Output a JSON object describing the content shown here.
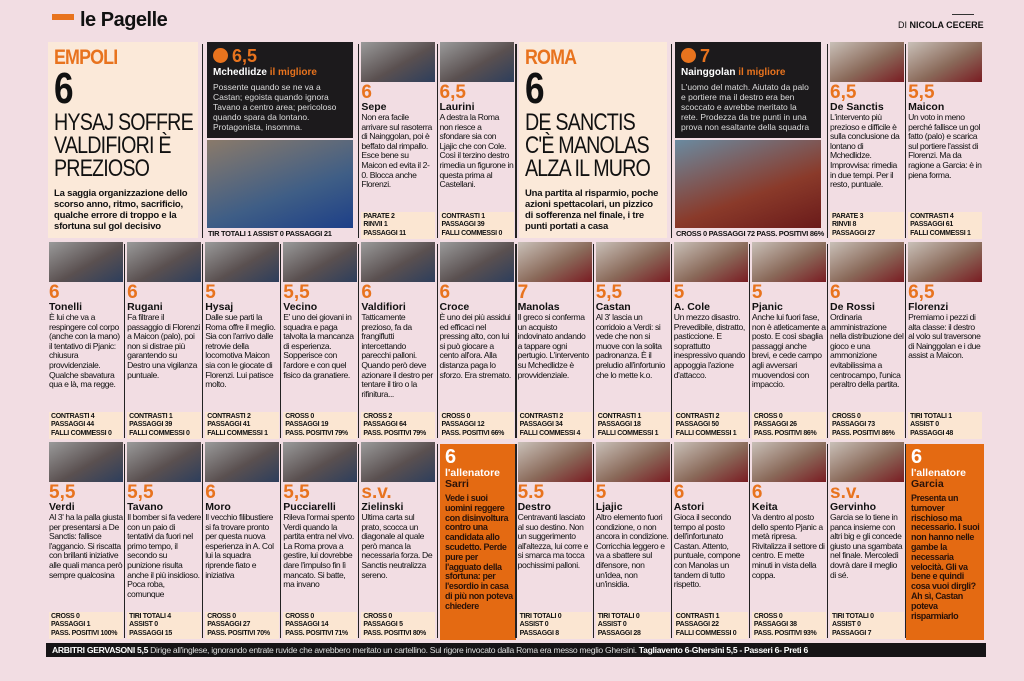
{
  "header": {
    "title": "le Pagelle",
    "byline_prefix": "DI",
    "byline_author": "NICOLA CECERE"
  },
  "colors": {
    "accent": "#e8731e",
    "background": "#f2dde3",
    "summary_bg": "#fbe9d9",
    "best_bg": "#1c1a1c"
  },
  "empoli": {
    "team": "EMPOLI",
    "grade": "6",
    "headline": "HYSAJ SOFFRE VALDIFIORI È PREZIOSO",
    "lead": "La saggia organizzazione dello scorso anno, ritmo, sacrificio, qualche errore di troppo e la sfortuna sul gol decisivo",
    "best": {
      "icon": "ball-icon",
      "grade": "6,5",
      "name": "Mchedlidze",
      "tag": "il migliore",
      "text": "Possente quando se ne va a Castan; egoista quando ignora Tavano a centro area; pericoloso quando spara da lontano. Protagonista, insomma.",
      "stats": "TIR TOTALI 1 ASSIST 0 PASSAGGI 21"
    },
    "coach": {
      "grade": "6",
      "label": "l'allenatore",
      "name": "Sarri",
      "text": "Vede i suoi uomini reggere con disinvoltura contro una candidata allo scudetto. Perde pure per l'agguato della sfortuna: per l'esordio in casa di più non poteva chiedere"
    }
  },
  "roma": {
    "team": "ROMA",
    "grade": "6",
    "headline": "DE SANCTIS C'È MANOLAS ALZA IL MURO",
    "lead": "Una partita al risparmio, poche azioni spettacolari, un pizzico di sofferenza nel finale, i tre punti portati a casa",
    "best": {
      "icon": "ball-icon",
      "grade": "7",
      "name": "Nainggolan",
      "tag": "il migliore",
      "text": "L'uomo del match. Aiutato da palo e portiere ma il destro era ben scoccato e avrebbe meritato la rete. Prodezza da tre punti in una prova non esaltante della squadra",
      "stats": "CROSS 0 PASSAGGI 72 PASS. POSITIVI 86%"
    },
    "coach": {
      "grade": "6",
      "label": "l'allenatore",
      "name": "Garcia",
      "text": "Presenta un turnover rischioso ma necessario. I suoi non hanno nelle gambe la necessaria velocità. Gli va bene e quindi cosa vuoi dirgli? Ah sì, Castan poteva risparmiarlo"
    }
  },
  "players": [
    {
      "team": "empoli",
      "rating": "6",
      "name": "Sepe",
      "text": "Non era facile arrivare sul rasoterra di Nainggolan, poi è beffato dal rimpallo. Esce bene su Maicon ed evita il 2-0. Blocca anche Florenzi.",
      "stats": [
        "PARATE 2",
        "RINVII 1",
        "PASSAGGI 11"
      ]
    },
    {
      "team": "empoli",
      "rating": "6,5",
      "name": "Laurini",
      "text": "A destra la Roma non riesce a sfondare sia con Ljajic che con Cole. Così il terzino destro rimedia un figurone in questa prima al Castellani.",
      "stats": [
        "CONTRASTI 1",
        "PASSAGGI 39",
        "FALLI COMMESSI 0"
      ]
    },
    {
      "team": "roma",
      "rating": "6,5",
      "name": "De Sanctis",
      "text": "L'intervento più prezioso e difficile è sulla conclusione da lontano di Mchedlidze. Improvvisa: rimedia in due tempi. Per il resto, puntuale.",
      "stats": [
        "PARATE 3",
        "RINVII 8",
        "PASSAGGI 27"
      ]
    },
    {
      "team": "roma",
      "rating": "5,5",
      "name": "Maicon",
      "text": "Un voto in meno perché fallisce un gol fatto (palo) e scarica sul portiere l'assist di Florenzi. Ma da ragione a Garcia: è in piena forma.",
      "stats": [
        "CONTRASTI 4",
        "PASSAGGI 61",
        "FALLI COMMESSI 1"
      ]
    },
    {
      "team": "empoli",
      "rating": "6",
      "name": "Tonelli",
      "text": "È lui che va a respingere col corpo (anche con la mano) il tentativo di Pjanic: chiusura provvidenziale. Qualche sbavatura qua e là, ma regge.",
      "stats": [
        "CONTRASTI 4",
        "PASSAGGI 44",
        "FALLI COMMESSI 0"
      ]
    },
    {
      "team": "empoli",
      "rating": "6",
      "name": "Rugani",
      "text": "Fa filtrare il passaggio di Florenzi a Maicon (palo), poi non si distrae più garantendo su Destro una vigilanza puntuale.",
      "stats": [
        "CONTRASTI 1",
        "PASSAGGI 39",
        "FALLI COMMESSI 0"
      ]
    },
    {
      "team": "empoli",
      "rating": "5",
      "name": "Hysaj",
      "text": "Dalle sue parti la Roma offre il meglio. Sia con l'arrivo dalle retrovie della locomotiva Maicon sia con le giocate di Florenzi. Lui patisce molto.",
      "stats": [
        "CONTRASTI 2",
        "PASSAGGI 41",
        "FALLI COMMESSI 1"
      ]
    },
    {
      "team": "empoli",
      "rating": "5,5",
      "name": "Vecino",
      "text": "E' uno dei giovani in squadra e paga talvolta la mancanza di esperienza. Sopperisce con l'ardore e con quel fisico da granatiere.",
      "stats": [
        "CROSS 0",
        "PASSAGGI 19",
        "PASS. POSITIVI 79%"
      ]
    },
    {
      "team": "empoli",
      "rating": "6",
      "name": "Valdifiori",
      "text": "Tatticamente prezioso, fa da frangiflutti intercettando parecchi palloni. Quando però deve azionare il destro per tentare il tiro o la rifinitura...",
      "stats": [
        "CROSS 2",
        "PASSAGGI 64",
        "PASS. POSITIVI 79%"
      ]
    },
    {
      "team": "empoli",
      "rating": "6",
      "name": "Croce",
      "text": "È uno dei più assidui ed efficaci nel pressing alto, con lui si può giocare a cento all'ora. Alla distanza paga lo sforzo. Era stremato.",
      "stats": [
        "CROSS 0",
        "PASSAGGI 12",
        "PASS. POSITIVI 66%"
      ]
    },
    {
      "team": "roma",
      "rating": "7",
      "name": "Manolas",
      "text": "Il greco si conferma un acquisto indovinato andando a tappare ogni pertugio. L'intervento su Mchedlidze è provvidenziale.",
      "stats": [
        "CONTRASTI 2",
        "PASSAGGI 34",
        "FALLI COMMESSI 4"
      ]
    },
    {
      "team": "roma",
      "rating": "5,5",
      "name": "Castan",
      "text": "Al 3' lascia un corridoio a Verdi: si vede che non si muove con la solita padronanza. È il preludio all'infortunio che lo mette k.o.",
      "stats": [
        "CONTRASTI 1",
        "PASSAGGI 18",
        "FALLI COMMESSI 1"
      ]
    },
    {
      "team": "roma",
      "rating": "5",
      "name": "A. Cole",
      "text": "Un mezzo disastro. Prevedibile, distratto, pasticcione. E soprattutto inespressivo quando appoggia l'azione d'attacco.",
      "stats": [
        "CONTRASTI 2",
        "PASSAGGI 50",
        "FALLI COMMESSI 1"
      ]
    },
    {
      "team": "roma",
      "rating": "5",
      "name": "Pjanic",
      "text": "Anche lui fuori fase, non è atleticamente a posto. E così sbaglia passaggi anche brevi, e cede campo agli avversari muovendosi con impaccio.",
      "stats": [
        "CROSS 0",
        "PASSAGGI 26",
        "PASS. POSITIVI 86%"
      ]
    },
    {
      "team": "roma",
      "rating": "6",
      "name": "De Rossi",
      "text": "Ordinaria amministrazione nella distribuzione del gioco e una ammonizione evitabilissima a centrocampo, l'unica peraltro della partita.",
      "stats": [
        "CROSS 0",
        "PASSAGGI 73",
        "PASS. POSITIVI 86%"
      ]
    },
    {
      "team": "roma",
      "rating": "6,5",
      "name": "Florenzi",
      "text": "Premiamo i pezzi di alta classe: il destro al volo sul traversone di Nainggolan e i due assist a Maicon.",
      "stats": [
        "TIRI TOTALI 1",
        "ASSIST 0",
        "PASSAGGI 48"
      ]
    },
    {
      "team": "empoli",
      "rating": "5,5",
      "name": "Verdi",
      "text": "Al 3' ha la palla giusta per presentarsi a De Sanctis: fallisce l'aggancio. Si riscatta con brillanti iniziative alle quali manca però sempre qualcosina",
      "stats": [
        "CROSS 0",
        "PASSAGGI 1",
        "PASS. POSITIVI 100%"
      ]
    },
    {
      "team": "empoli",
      "rating": "5,5",
      "name": "Tavano",
      "text": "Il bomber si fa vedere con un paio di tentativi da fuori nel primo tempo, il secondo su punizione risulta anche il più insidioso. Poca roba, comunque",
      "stats": [
        "TIRI TOTALI 4",
        "ASSIST 0",
        "PASSAGGI 15"
      ]
    },
    {
      "team": "empoli",
      "rating": "6",
      "name": "Moro",
      "text": "Il vecchio filibustiere si fa trovare pronto per questa nuova esperienza in A. Col lui la squadra riprende fiato e iniziativa",
      "stats": [
        "CROSS 0",
        "PASSAGGI 27",
        "PASS. POSITIVI 70%"
      ]
    },
    {
      "team": "empoli",
      "rating": "5,5",
      "name": "Pucciarelli",
      "text": "Rileva l'ormai spento Verdi quando la partita entra nel vivo. La Roma prova a gestire, lui dovrebbe dare l'impulso fin lì mancato. Si batte, ma invano",
      "stats": [
        "CROSS 0",
        "PASSAGGI 14",
        "PASS. POSITIVI 71%"
      ]
    },
    {
      "team": "empoli",
      "rating": "s.v.",
      "name": "Zielinski",
      "text": "Ultima carta sul prato, scocca un diagonale al quale però manca la necessaria forza. De Sanctis neutralizza sereno.",
      "stats": [
        "CROSS 0",
        "PASSAGGI 5",
        "PASS. POSITIVI 80%"
      ]
    },
    {
      "team": "roma",
      "rating": "5.5",
      "name": "Destro",
      "text": "Centravanti lasciato al suo destino. Non un suggerimento all'altezza, lui corre e si smarca ma tocca pochissimi palloni.",
      "stats": [
        "TIRI TOTALI 0",
        "ASSIST 0",
        "PASSAGGI 8"
      ]
    },
    {
      "team": "roma",
      "rating": "5",
      "name": "Ljajic",
      "text": "Altro elemento fuori condizione, o non ancora in condizione. Corricchia leggero e va a sbattere sul difensore, non un'idea, non un'insidia.",
      "stats": [
        "TIRI TOTALI 0",
        "ASSIST 0",
        "PASSAGGI 28"
      ]
    },
    {
      "team": "roma",
      "rating": "6",
      "name": "Astori",
      "text": "Gioca il secondo tempo al posto dell'infortunato Castan. Attento, puntuale, compone con Manolas un tandem di tutto rispetto.",
      "stats": [
        "CONTRASTI 1",
        "PASSAGGI 22",
        "FALLI COMMESSI 0"
      ]
    },
    {
      "team": "roma",
      "rating": "6",
      "name": "Keita",
      "text": "Va dentro al posto dello spento Pjanic a metà ripresa. Rivitalizza il settore di centro. E mette minuti in vista della coppa.",
      "stats": [
        "CROSS 0",
        "PASSAGGI 38",
        "PASS. POSITIVI 93%"
      ]
    },
    {
      "team": "roma",
      "rating": "s.v.",
      "name": "Gervinho",
      "text": "Garcia se lo tiene in panca insieme con altri big e gli concede giusto una sgambata nel finale. Mercoledì dovrà dare il meglio di sé.",
      "stats": [
        "TIRI TOTALI 0",
        "ASSIST 0",
        "PASSAGGI 7"
      ]
    }
  ],
  "referees": {
    "label": "ARBITRI",
    "name": "GERVASONI 5,5",
    "text": "Dirige all'inglese, ignorando entrate ruvide che avrebbero meritato un cartellino. Sul rigore invocato dalla Roma era messo meglio Ghersini.",
    "assistants": "Tagliavento 6-Ghersini 5,5 - Passeri 6- Preti 6"
  }
}
